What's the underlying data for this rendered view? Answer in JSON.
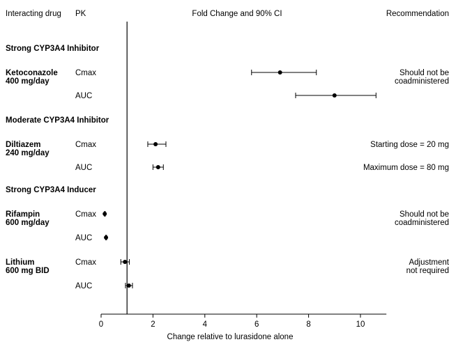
{
  "chart_data": {
    "type": "forest",
    "headers": {
      "drug": "Interacting drug",
      "pk": "PK",
      "plot": "Fold Change and 90% CI",
      "recommendation": "Recommendation"
    },
    "xlabel": "Change relative to lurasidone alone",
    "xlim": [
      0,
      11
    ],
    "xticks": [
      "0",
      "2",
      "4",
      "6",
      "8",
      "10"
    ],
    "reference_line": 1,
    "rows": [
      {
        "kind": "section",
        "label": "Strong CYP3A4 Inhibitor"
      },
      {
        "kind": "data",
        "drug": [
          "Ketoconazole",
          "400 mg/day"
        ],
        "pk": "Cmax",
        "est": 6.9,
        "lo": 5.8,
        "hi": 8.3,
        "rec": [
          "Should not be",
          "coadministered"
        ]
      },
      {
        "kind": "data",
        "pk": "AUC",
        "est": 9.0,
        "lo": 7.5,
        "hi": 10.6
      },
      {
        "kind": "section",
        "label": "Moderate CYP3A4 Inhibitor"
      },
      {
        "kind": "data",
        "drug": [
          "Diltiazem",
          "240 mg/day"
        ],
        "pk": "Cmax",
        "est": 2.1,
        "lo": 1.8,
        "hi": 2.5,
        "rec": [
          "Starting dose = 20 mg"
        ]
      },
      {
        "kind": "data",
        "pk": "AUC",
        "est": 2.2,
        "lo": 2.0,
        "hi": 2.4,
        "rec": [
          "Maximum dose = 80 mg"
        ]
      },
      {
        "kind": "section",
        "label": "Strong CYP3A4 Inducer"
      },
      {
        "kind": "data",
        "drug": [
          "Rifampin",
          "600 mg/day"
        ],
        "pk": "Cmax",
        "est": 0.14,
        "lo": 0.13,
        "hi": 0.16,
        "rec": [
          "Should not be",
          "coadministered"
        ]
      },
      {
        "kind": "data",
        "pk": "AUC",
        "est": 0.19,
        "lo": 0.18,
        "hi": 0.21
      },
      {
        "kind": "data",
        "drug": [
          "Lithium",
          "600 mg BID"
        ],
        "pk": "Cmax",
        "est": 0.92,
        "lo": 0.76,
        "hi": 1.09,
        "rec": [
          "Adjustment",
          "not required"
        ]
      },
      {
        "kind": "data",
        "pk": "AUC",
        "est": 1.07,
        "lo": 0.94,
        "hi": 1.21
      }
    ]
  }
}
